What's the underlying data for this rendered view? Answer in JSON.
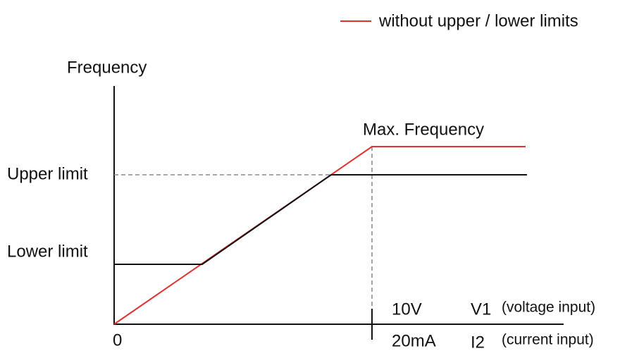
{
  "legend": {
    "label": "without upper / lower limits"
  },
  "y_axis_title": "Frequency",
  "labels": {
    "max_frequency": "Max. Frequency",
    "upper_limit": "Upper limit",
    "lower_limit": "Lower limit",
    "origin": "0"
  },
  "x_axis_inputs": [
    {
      "value": "10V",
      "terminal": "V1",
      "description": "(voltage input)"
    },
    {
      "value": "20mA",
      "terminal": "I2",
      "description": "(current input)"
    }
  ]
}
